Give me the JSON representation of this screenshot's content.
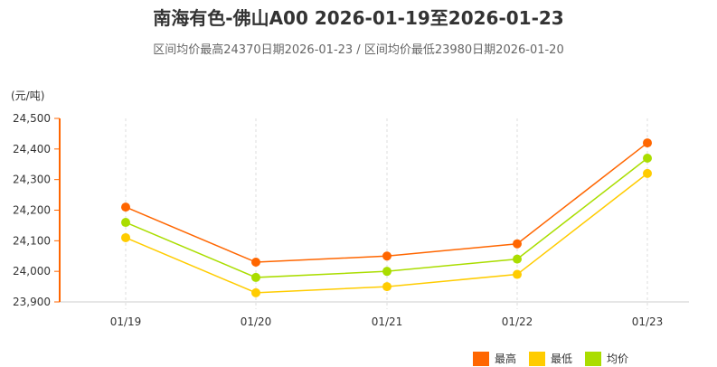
{
  "title": "南海有色-佛山A00 2026-01-19至2026-01-23",
  "subtitle": "区间均价最高24370日期2026-01-23 / 区间均价最低23980日期2026-01-20",
  "unit": "(元/吨)",
  "legend": [
    {
      "label": "最高",
      "color": "#ff6600"
    },
    {
      "label": "最低",
      "color": "#ffcc00"
    },
    {
      "label": "均价",
      "color": "#aadd00"
    }
  ],
  "chart_data": {
    "type": "line",
    "title": "南海有色-佛山A00 2026-01-19至2026-01-23",
    "subtitle": "区间均价最高24370日期2026-01-23 / 区间均价最低23980日期2026-01-20",
    "xlabel": "",
    "ylabel": "(元/吨)",
    "categories": [
      "01/19",
      "01/20",
      "01/21",
      "01/22",
      "01/23"
    ],
    "series": [
      {
        "name": "最高",
        "color": "#ff6600",
        "values": [
          24210,
          24030,
          24050,
          24090,
          24420
        ]
      },
      {
        "name": "最低",
        "color": "#ffcc00",
        "values": [
          24110,
          23930,
          23950,
          23990,
          24320
        ]
      },
      {
        "name": "均价",
        "color": "#aadd00",
        "values": [
          24160,
          23980,
          24000,
          24040,
          24370
        ]
      }
    ],
    "ylim": [
      23900,
      24500
    ],
    "yticks": [
      "23,900",
      "24,000",
      "24,100",
      "24,200",
      "24,300",
      "24,400",
      "24,500"
    ],
    "grid": "vertical dashed",
    "legend_position": "bottom-right"
  }
}
